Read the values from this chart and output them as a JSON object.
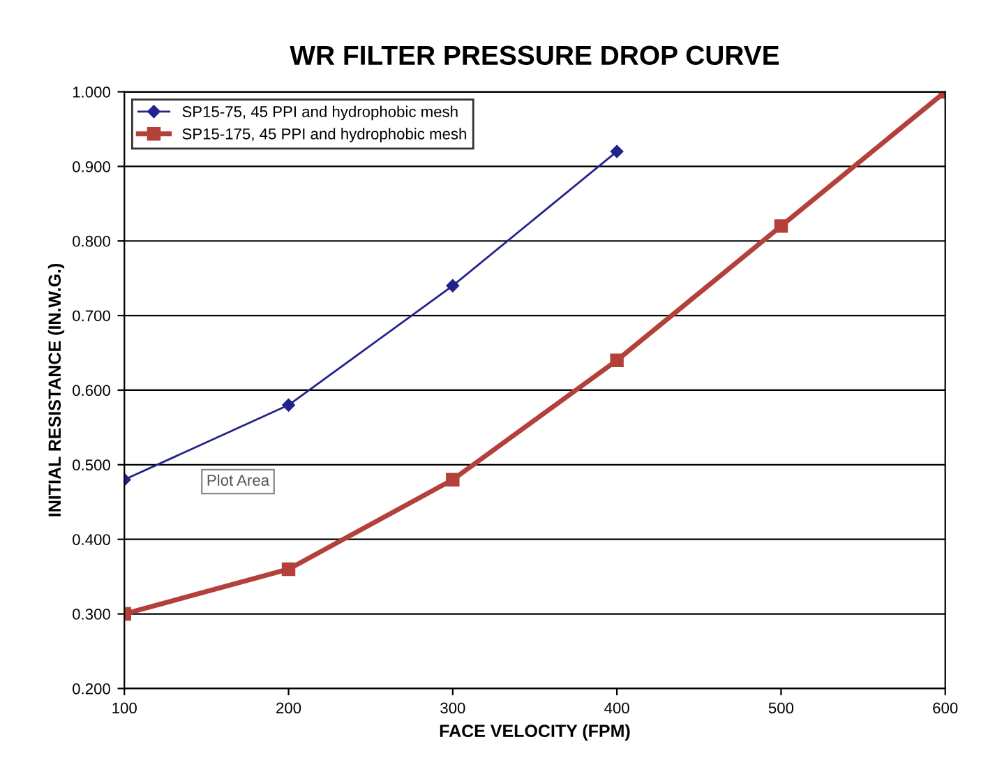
{
  "chart_data": {
    "type": "line",
    "title": "WR FILTER PRESSURE DROP CURVE",
    "xlabel": "FACE VELOCITY (FPM)",
    "ylabel": "INITIAL RESISTANCE (IN.W.G.)",
    "series": [
      {
        "name": "SP15-75, 45 PPI and hydrophobic mesh",
        "color": "#23238c",
        "marker": "diamond",
        "x": [
          100,
          200,
          300,
          400
        ],
        "values": [
          0.48,
          0.58,
          0.74,
          0.92
        ]
      },
      {
        "name": "SP15-175, 45 PPI and hydrophobic mesh",
        "color": "#b3403a",
        "marker": "square",
        "x": [
          100,
          200,
          300,
          400,
          500,
          600
        ],
        "values": [
          0.3,
          0.36,
          0.48,
          0.64,
          0.82,
          1.0
        ]
      }
    ],
    "xlim": [
      100,
      600
    ],
    "xticks": [
      100,
      200,
      300,
      400,
      500,
      600
    ],
    "ylim": [
      0.2,
      1.0
    ],
    "yticks": [
      {
        "value": 0.2,
        "label": "0.200"
      },
      {
        "value": 0.3,
        "label": "0.300"
      },
      {
        "value": 0.4,
        "label": "0.400"
      },
      {
        "value": 0.5,
        "label": "0.500"
      },
      {
        "value": 0.6,
        "label": "0.600"
      },
      {
        "value": 0.7,
        "label": "0.700"
      },
      {
        "value": 0.8,
        "label": "0.800"
      },
      {
        "value": 0.9,
        "label": "0.900"
      },
      {
        "value": 1.0,
        "label": "1.000"
      }
    ],
    "grid": "y",
    "legend": "top left",
    "line_style": "solid",
    "annotations": [
      "Plot Area"
    ]
  }
}
